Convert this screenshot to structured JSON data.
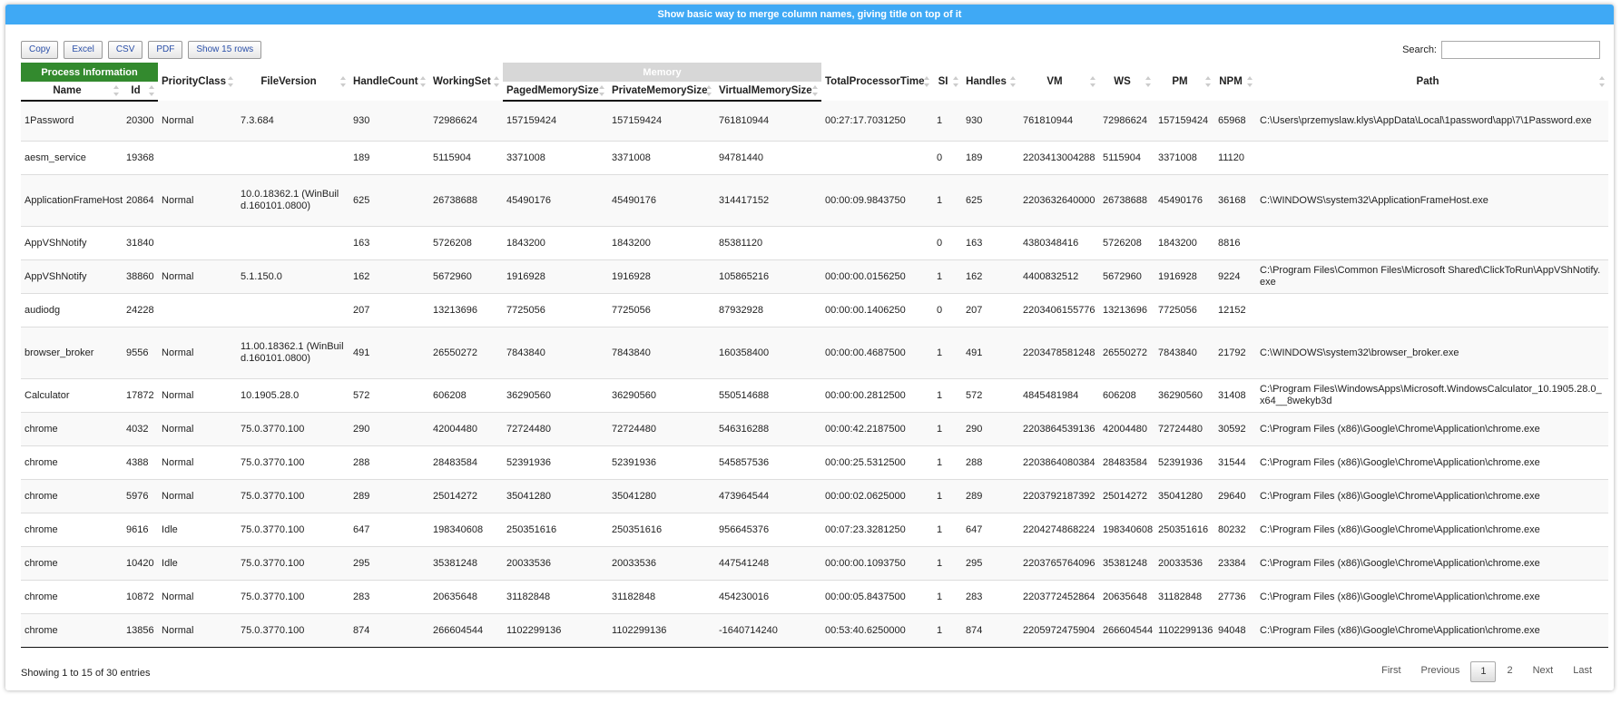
{
  "header": {
    "title": "Show basic way to merge column names, giving title on top of it"
  },
  "buttons": [
    "Copy",
    "Excel",
    "CSV",
    "PDF",
    "Show 15 rows"
  ],
  "search": {
    "label": "Search:"
  },
  "table": {
    "groups": [
      "Process Information",
      "Memory"
    ],
    "columns": [
      "Name",
      "Id",
      "PriorityClass",
      "FileVersion",
      "HandleCount",
      "WorkingSet",
      "PagedMemorySize",
      "PrivateMemorySize",
      "VirtualMemorySize",
      "TotalProcessorTime",
      "SI",
      "Handles",
      "VM",
      "WS",
      "PM",
      "NPM",
      "Path"
    ],
    "rows": [
      [
        "1Password",
        "20300",
        "Normal",
        "7.3.684",
        "930",
        "72986624",
        "157159424",
        "157159424",
        "761810944",
        "00:27:17.7031250",
        "1",
        "930",
        "761810944",
        "72986624",
        "157159424",
        "65968",
        "C:\\Users\\przemyslaw.klys\\AppData\\Local\\1password\\app\\7\\1Password.exe"
      ],
      [
        "aesm_service",
        "19368",
        null,
        null,
        "189",
        "5115904",
        "3371008",
        "3371008",
        "94781440",
        null,
        "0",
        "189",
        "2203413004288",
        "5115904",
        "3371008",
        "11120",
        null
      ],
      [
        "ApplicationFrameHost",
        "20864",
        "Normal",
        "10.0.18362.1 (WinBuild.160101.0800)",
        "625",
        "26738688",
        "45490176",
        "45490176",
        "314417152",
        "00:00:09.9843750",
        "1",
        "625",
        "2203632640000",
        "26738688",
        "45490176",
        "36168",
        "C:\\WINDOWS\\system32\\ApplicationFrameHost.exe"
      ],
      [
        "AppVShNotify",
        "31840",
        null,
        null,
        "163",
        "5726208",
        "1843200",
        "1843200",
        "85381120",
        null,
        "0",
        "163",
        "4380348416",
        "5726208",
        "1843200",
        "8816",
        null
      ],
      [
        "AppVShNotify",
        "38860",
        "Normal",
        "5.1.150.0",
        "162",
        "5672960",
        "1916928",
        "1916928",
        "105865216",
        "00:00:00.0156250",
        "1",
        "162",
        "4400832512",
        "5672960",
        "1916928",
        "9224",
        "C:\\Program Files\\Common Files\\Microsoft Shared\\ClickToRun\\AppVShNotify.exe"
      ],
      [
        "audiodg",
        "24228",
        null,
        null,
        "207",
        "13213696",
        "7725056",
        "7725056",
        "87932928",
        "00:00:00.1406250",
        "0",
        "207",
        "2203406155776",
        "13213696",
        "7725056",
        "12152",
        null
      ],
      [
        "browser_broker",
        "9556",
        "Normal",
        "11.00.18362.1 (WinBuild.160101.0800)",
        "491",
        "26550272",
        "7843840",
        "7843840",
        "160358400",
        "00:00:00.4687500",
        "1",
        "491",
        "2203478581248",
        "26550272",
        "7843840",
        "21792",
        "C:\\WINDOWS\\system32\\browser_broker.exe"
      ],
      [
        "Calculator",
        "17872",
        "Normal",
        "10.1905.28.0",
        "572",
        "606208",
        "36290560",
        "36290560",
        "550514688",
        "00:00:00.2812500",
        "1",
        "572",
        "4845481984",
        "606208",
        "36290560",
        "31408",
        "C:\\Program Files\\WindowsApps\\Microsoft.WindowsCalculator_10.1905.28.0_x64__8wekyb3d"
      ],
      [
        "chrome",
        "4032",
        "Normal",
        "75.0.3770.100",
        "290",
        "42004480",
        "72724480",
        "72724480",
        "546316288",
        "00:00:42.2187500",
        "1",
        "290",
        "2203864539136",
        "42004480",
        "72724480",
        "30592",
        "C:\\Program Files (x86)\\Google\\Chrome\\Application\\chrome.exe"
      ],
      [
        "chrome",
        "4388",
        "Normal",
        "75.0.3770.100",
        "288",
        "28483584",
        "52391936",
        "52391936",
        "545857536",
        "00:00:25.5312500",
        "1",
        "288",
        "2203864080384",
        "28483584",
        "52391936",
        "31544",
        "C:\\Program Files (x86)\\Google\\Chrome\\Application\\chrome.exe"
      ],
      [
        "chrome",
        "5976",
        "Normal",
        "75.0.3770.100",
        "289",
        "25014272",
        "35041280",
        "35041280",
        "473964544",
        "00:00:02.0625000",
        "1",
        "289",
        "2203792187392",
        "25014272",
        "35041280",
        "29640",
        "C:\\Program Files (x86)\\Google\\Chrome\\Application\\chrome.exe"
      ],
      [
        "chrome",
        "9616",
        "Idle",
        "75.0.3770.100",
        "647",
        "198340608",
        "250351616",
        "250351616",
        "956645376",
        "00:07:23.3281250",
        "1",
        "647",
        "2204274868224",
        "198340608",
        "250351616",
        "80232",
        "C:\\Program Files (x86)\\Google\\Chrome\\Application\\chrome.exe"
      ],
      [
        "chrome",
        "10420",
        "Idle",
        "75.0.3770.100",
        "295",
        "35381248",
        "20033536",
        "20033536",
        "447541248",
        "00:00:00.1093750",
        "1",
        "295",
        "2203765764096",
        "35381248",
        "20033536",
        "23384",
        "C:\\Program Files (x86)\\Google\\Chrome\\Application\\chrome.exe"
      ],
      [
        "chrome",
        "10872",
        "Normal",
        "75.0.3770.100",
        "283",
        "20635648",
        "31182848",
        "31182848",
        "454230016",
        "00:00:05.8437500",
        "1",
        "283",
        "2203772452864",
        "20635648",
        "31182848",
        "27736",
        "C:\\Program Files (x86)\\Google\\Chrome\\Application\\chrome.exe"
      ],
      [
        "chrome",
        "13856",
        "Normal",
        "75.0.3770.100",
        "874",
        "266604544",
        "1102299136",
        "1102299136",
        "-1640714240",
        "00:53:40.6250000",
        "1",
        "874",
        "2205972475904",
        "266604544",
        "1102299136",
        "94048",
        "C:\\Program Files (x86)\\Google\\Chrome\\Application\\chrome.exe"
      ]
    ]
  },
  "footer": {
    "info": "Showing 1 to 15 of 30 entries",
    "pagination": [
      "First",
      "Previous",
      "1",
      "2",
      "Next",
      "Last"
    ]
  }
}
